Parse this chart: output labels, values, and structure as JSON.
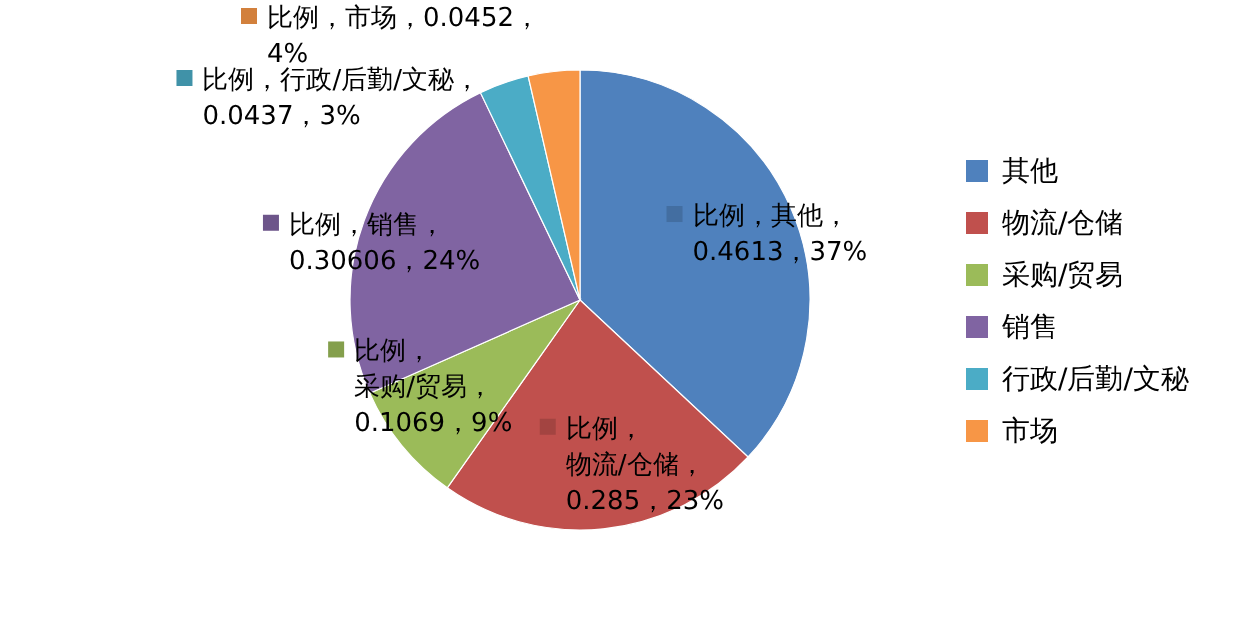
{
  "chart_data": {
    "type": "pie",
    "categories": [
      "其他",
      "物流/仓储",
      "采购/贸易",
      "销售",
      "行政/后勤/文秘",
      "市场"
    ],
    "values": [
      0.4613,
      0.285,
      0.1069,
      0.30606,
      0.0437,
      0.0452
    ],
    "colors": [
      "#4f81bd",
      "#c0504d",
      "#9bbb59",
      "#8064a2",
      "#4bacc6",
      "#f79646"
    ],
    "value_labels": [
      "比例，其他，0.4613，37%",
      "比例，物流/仓储，0.285，23%",
      "比例，采购/贸易，0.1069，9%",
      "比例，销售，0.30606，24%",
      "比例，行政/后勤/文秘，0.0437，3%",
      "比例，市场，0.0452，4%"
    ],
    "legend": "right"
  }
}
